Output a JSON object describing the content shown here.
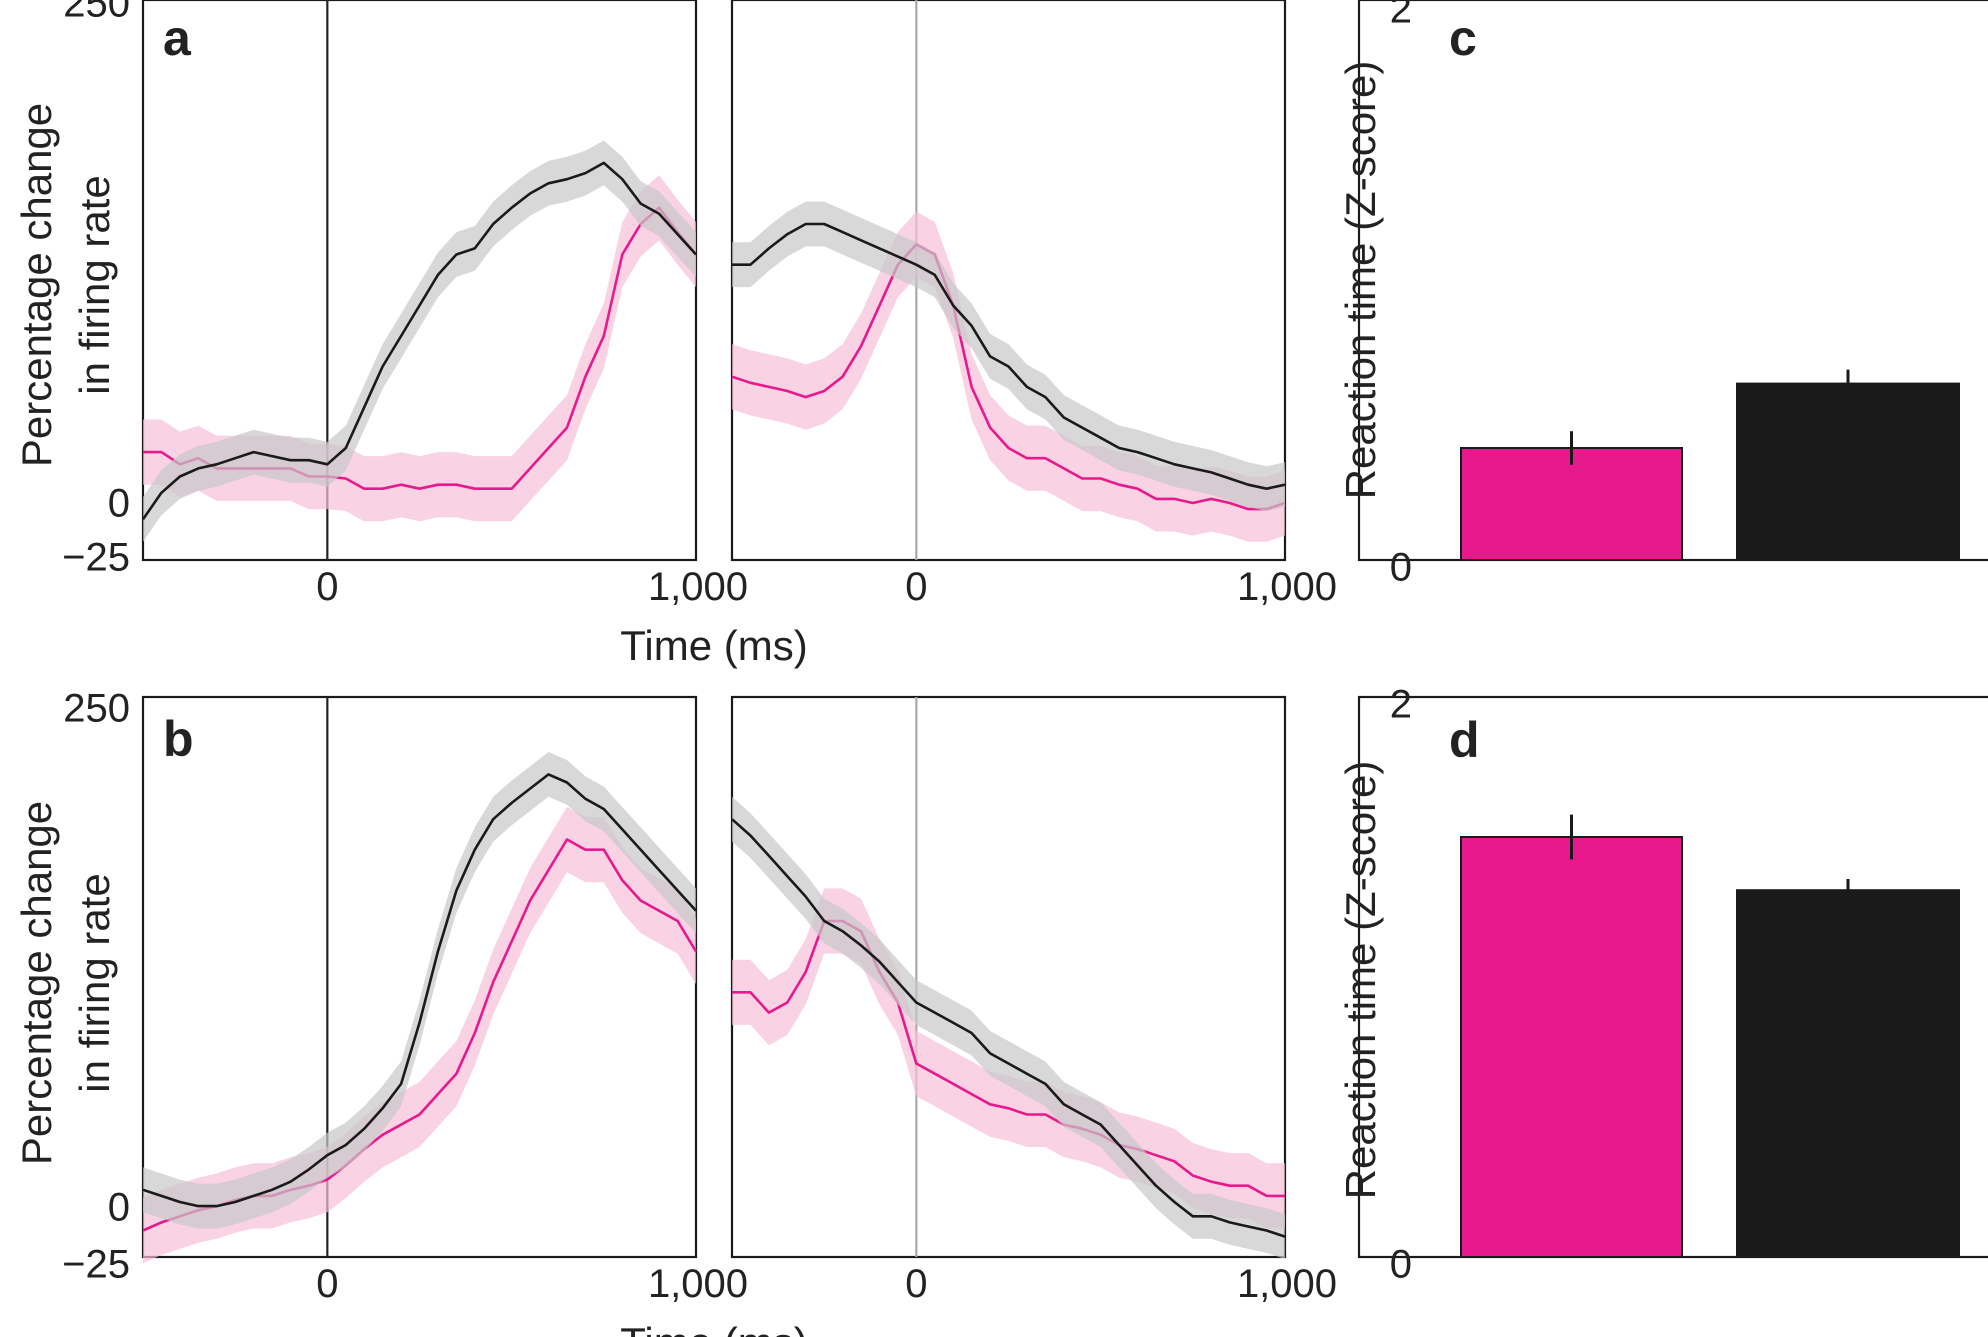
{
  "figure": {
    "colors": {
      "magenta": "#e8198c",
      "black": "#1a1a1a",
      "magenta_band": "#f7bfd9",
      "grey_band": "#c8c8c8",
      "vline_dark": "#222222",
      "vline_light": "#a8a8a8"
    }
  },
  "chart_data": [
    {
      "panel": "a",
      "type": "line",
      "ylabel": [
        "Percentage change",
        "in firing rate"
      ],
      "xlabel": "Time (ms)",
      "ylim": [
        -25,
        250
      ],
      "yticks": [
        "250",
        "0",
        "−25"
      ],
      "subplots": [
        {
          "side": "left",
          "xlim": [
            -500,
            1000
          ],
          "xticks": [
            "0",
            "1,000"
          ],
          "vline_at": 0,
          "series": [
            {
              "color": "magenta",
              "x": [
                -500,
                -450,
                -400,
                -350,
                -300,
                -250,
                -200,
                -150,
                -100,
                -50,
                0,
                50,
                100,
                150,
                200,
                250,
                300,
                350,
                400,
                450,
                500,
                550,
                600,
                650,
                700,
                750,
                800,
                850,
                900,
                950,
                1000
              ],
              "y": [
                28,
                28,
                22,
                25,
                20,
                20,
                20,
                20,
                20,
                16,
                16,
                15,
                10,
                10,
                12,
                10,
                12,
                12,
                10,
                10,
                10,
                20,
                30,
                40,
                65,
                85,
                125,
                140,
                148,
                136,
                125
              ]
            },
            {
              "color": "black",
              "x": [
                -500,
                -450,
                -400,
                -350,
                -300,
                -250,
                -200,
                -150,
                -100,
                -50,
                0,
                50,
                100,
                150,
                200,
                250,
                300,
                350,
                400,
                450,
                500,
                550,
                600,
                650,
                700,
                750,
                800,
                850,
                900,
                950,
                1000
              ],
              "y": [
                -5,
                8,
                16,
                20,
                22,
                25,
                28,
                26,
                24,
                24,
                22,
                30,
                50,
                70,
                85,
                100,
                115,
                125,
                128,
                140,
                148,
                155,
                160,
                162,
                165,
                170,
                162,
                150,
                145,
                135,
                125
              ]
            }
          ]
        },
        {
          "side": "right",
          "xlim": [
            -500,
            1000
          ],
          "xticks": [
            "0",
            "1,000"
          ],
          "vline_at": 0,
          "series": [
            {
              "color": "magenta",
              "x": [
                -500,
                -450,
                -400,
                -350,
                -300,
                -250,
                -200,
                -150,
                -100,
                -50,
                0,
                50,
                100,
                150,
                200,
                250,
                300,
                350,
                400,
                450,
                500,
                550,
                600,
                650,
                700,
                750,
                800,
                850,
                900,
                950,
                1000
              ],
              "y": [
                65,
                62,
                60,
                58,
                55,
                58,
                65,
                80,
                100,
                120,
                130,
                125,
                100,
                60,
                40,
                30,
                25,
                25,
                20,
                15,
                15,
                12,
                10,
                5,
                5,
                3,
                5,
                3,
                0,
                0,
                3
              ]
            },
            {
              "color": "black",
              "x": [
                -500,
                -450,
                -400,
                -350,
                -300,
                -250,
                -200,
                -150,
                -100,
                -50,
                0,
                50,
                100,
                150,
                200,
                250,
                300,
                350,
                400,
                450,
                500,
                550,
                600,
                650,
                700,
                750,
                800,
                850,
                900,
                950,
                1000
              ],
              "y": [
                120,
                120,
                128,
                135,
                140,
                140,
                136,
                132,
                128,
                124,
                120,
                115,
                100,
                90,
                75,
                70,
                60,
                55,
                45,
                40,
                35,
                30,
                28,
                25,
                22,
                20,
                18,
                15,
                12,
                10,
                12
              ]
            }
          ]
        }
      ]
    },
    {
      "panel": "b",
      "type": "line",
      "ylabel": [
        "Percentage change",
        "in firing rate"
      ],
      "xlabel": "Time (ms)",
      "ylim": [
        -25,
        250
      ],
      "yticks": [
        "250",
        "0",
        "−25"
      ],
      "subplots": [
        {
          "side": "left",
          "xlim": [
            -500,
            1000
          ],
          "xticks": [
            "0",
            "1,000"
          ],
          "vline_at": 0,
          "series": [
            {
              "color": "magenta",
              "x": [
                -500,
                -450,
                -400,
                -350,
                -300,
                -250,
                -200,
                -150,
                -100,
                -50,
                0,
                50,
                100,
                150,
                200,
                250,
                300,
                350,
                400,
                450,
                500,
                550,
                600,
                650,
                700,
                750,
                800,
                850,
                900,
                950,
                1000
              ],
              "y": [
                -12,
                -8,
                -5,
                -2,
                0,
                3,
                5,
                5,
                8,
                10,
                13,
                20,
                28,
                35,
                40,
                45,
                55,
                65,
                85,
                110,
                130,
                150,
                165,
                180,
                175,
                175,
                160,
                150,
                145,
                140,
                125
              ]
            },
            {
              "color": "black",
              "x": [
                -500,
                -450,
                -400,
                -350,
                -300,
                -250,
                -200,
                -150,
                -100,
                -50,
                0,
                50,
                100,
                150,
                200,
                250,
                300,
                350,
                400,
                450,
                500,
                550,
                600,
                650,
                700,
                750,
                800,
                850,
                900,
                950,
                1000
              ],
              "y": [
                8,
                5,
                2,
                0,
                0,
                2,
                5,
                8,
                12,
                18,
                25,
                30,
                38,
                48,
                60,
                90,
                125,
                155,
                175,
                190,
                198,
                205,
                212,
                208,
                200,
                195,
                185,
                175,
                165,
                155,
                145
              ]
            }
          ]
        },
        {
          "side": "right",
          "xlim": [
            -500,
            1000
          ],
          "xticks": [
            "0",
            "1,000"
          ],
          "vline_at": 0,
          "series": [
            {
              "color": "magenta",
              "x": [
                -500,
                -450,
                -400,
                -350,
                -300,
                -250,
                -200,
                -150,
                -100,
                -50,
                0,
                50,
                100,
                150,
                200,
                250,
                300,
                350,
                400,
                450,
                500,
                550,
                600,
                650,
                700,
                750,
                800,
                850,
                900,
                950,
                1000
              ],
              "y": [
                105,
                105,
                95,
                100,
                115,
                140,
                140,
                135,
                115,
                100,
                70,
                65,
                60,
                55,
                50,
                48,
                45,
                45,
                40,
                38,
                35,
                30,
                28,
                25,
                22,
                15,
                12,
                10,
                10,
                5,
                5
              ]
            },
            {
              "color": "black",
              "x": [
                -500,
                -450,
                -400,
                -350,
                -300,
                -250,
                -200,
                -150,
                -100,
                -50,
                0,
                50,
                100,
                150,
                200,
                250,
                300,
                350,
                400,
                450,
                500,
                550,
                600,
                650,
                700,
                750,
                800,
                850,
                900,
                950,
                1000
              ],
              "y": [
                190,
                182,
                172,
                162,
                152,
                140,
                135,
                128,
                120,
                110,
                100,
                95,
                90,
                85,
                75,
                70,
                65,
                60,
                50,
                45,
                40,
                30,
                20,
                10,
                2,
                -5,
                -5,
                -8,
                -10,
                -12,
                -15
              ]
            }
          ]
        }
      ]
    },
    {
      "panel": "c",
      "type": "bar",
      "ylabel": "Reaction time (Z-score)",
      "ylim": [
        0,
        2
      ],
      "yticks": [
        "2",
        "0"
      ],
      "bars": [
        {
          "color": "magenta",
          "value": 0.4,
          "err": 0.06
        },
        {
          "color": "black",
          "value": 0.63,
          "err": 0.05
        }
      ]
    },
    {
      "panel": "d",
      "type": "bar",
      "ylabel": "Reaction time (Z-score)",
      "ylim": [
        0,
        2
      ],
      "yticks": [
        "2",
        "0"
      ],
      "bars": [
        {
          "color": "magenta",
          "value": 1.5,
          "err": 0.08
        },
        {
          "color": "black",
          "value": 1.31,
          "err": 0.04
        }
      ]
    }
  ]
}
